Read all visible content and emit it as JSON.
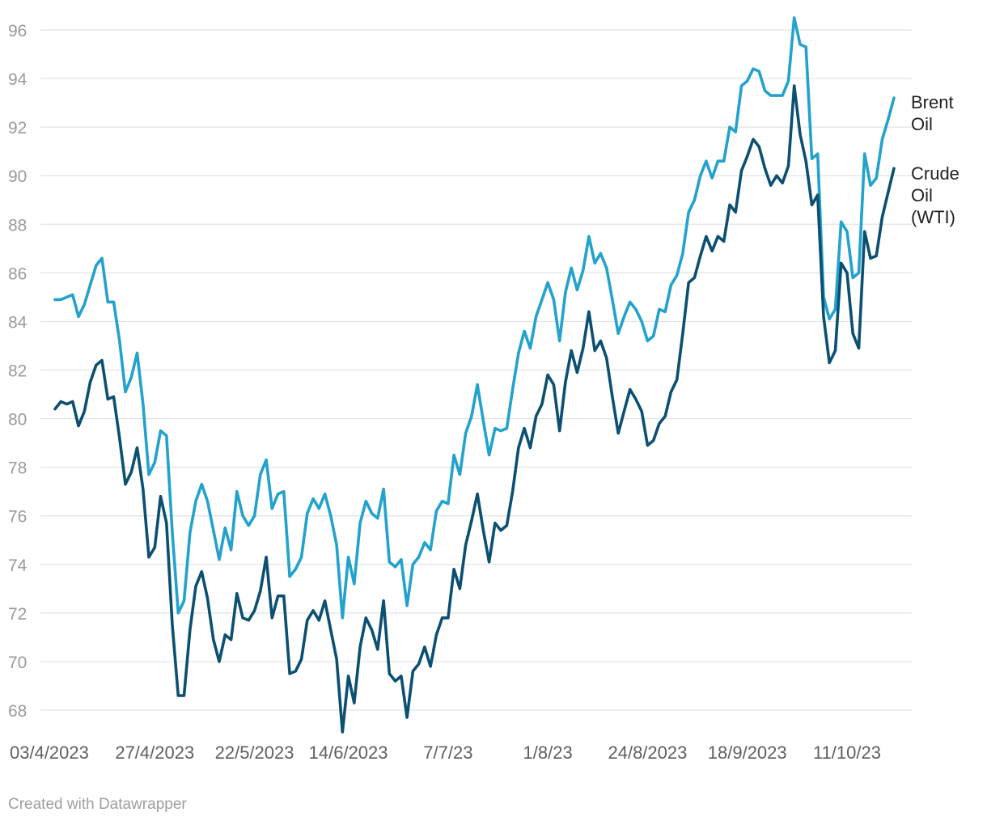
{
  "credit": "Created with Datawrapper",
  "chart_data": {
    "type": "line",
    "title": "",
    "xlabel": "",
    "ylabel": "",
    "ylim": [
      67,
      97
    ],
    "yticks": [
      68,
      70,
      72,
      74,
      76,
      78,
      80,
      82,
      84,
      86,
      88,
      90,
      92,
      94,
      96
    ],
    "x_tick_labels": [
      {
        "label": "03/4/2023",
        "index": 0
      },
      {
        "label": "27/4/2023",
        "index": 17
      },
      {
        "label": "22/5/2023",
        "index": 34
      },
      {
        "label": "14/6/2023",
        "index": 50
      },
      {
        "label": "7/7/23",
        "index": 67
      },
      {
        "label": "1/8/23",
        "index": 84
      },
      {
        "label": "24/8/2023",
        "index": 101
      },
      {
        "label": "18/9/2023",
        "index": 118
      },
      {
        "label": "11/10/23",
        "index": 135
      }
    ],
    "grid": true,
    "legend": "inline-right",
    "series": [
      {
        "name": "Brent Oil",
        "label_lines": [
          "Brent",
          "Oil"
        ],
        "color": "#22a2cc",
        "values": [
          84.9,
          84.9,
          85.0,
          85.1,
          84.2,
          84.7,
          85.5,
          86.3,
          86.6,
          84.8,
          84.8,
          83.2,
          81.1,
          81.7,
          82.7,
          80.6,
          77.7,
          78.2,
          79.5,
          79.3,
          75.3,
          72.0,
          72.5,
          75.3,
          76.6,
          77.3,
          76.6,
          75.4,
          74.2,
          75.5,
          74.6,
          77.0,
          76.0,
          75.6,
          76.0,
          77.7,
          78.3,
          76.3,
          76.9,
          77.0,
          73.5,
          73.8,
          74.3,
          76.1,
          76.7,
          76.3,
          76.9,
          76.0,
          74.8,
          71.8,
          74.3,
          73.2,
          75.7,
          76.6,
          76.1,
          75.9,
          77.1,
          74.1,
          73.9,
          74.2,
          72.3,
          74.0,
          74.3,
          74.9,
          74.6,
          76.2,
          76.6,
          76.5,
          78.5,
          77.7,
          79.4,
          80.1,
          81.4,
          79.9,
          78.5,
          79.6,
          79.5,
          79.6,
          81.2,
          82.7,
          83.6,
          82.9,
          84.2,
          84.9,
          85.6,
          84.9,
          83.2,
          85.2,
          86.2,
          85.3,
          86.1,
          87.5,
          86.4,
          86.8,
          86.2,
          84.9,
          83.5,
          84.2,
          84.8,
          84.5,
          84.0,
          83.2,
          83.4,
          84.5,
          84.4,
          85.5,
          85.9,
          86.8,
          88.5,
          89.0,
          90.0,
          90.6,
          89.9,
          90.6,
          90.6,
          92.0,
          91.8,
          93.7,
          93.9,
          94.4,
          94.3,
          93.5,
          93.3,
          93.3,
          93.3,
          93.9,
          96.5,
          95.4,
          95.3,
          90.7,
          90.9,
          85.0,
          84.1,
          84.5,
          88.1,
          87.7,
          85.8,
          86.0,
          90.9,
          89.6,
          89.9,
          91.5,
          92.3,
          93.2
        ]
      },
      {
        "name": "Crude Oil (WTI)",
        "label_lines": [
          "Crude",
          "Oil",
          "(WTI)"
        ],
        "color": "#0b4f71",
        "values": [
          80.4,
          80.7,
          80.6,
          80.7,
          79.7,
          80.3,
          81.5,
          82.2,
          82.4,
          80.8,
          80.9,
          79.2,
          77.3,
          77.8,
          78.8,
          77.1,
          74.3,
          74.7,
          76.8,
          75.7,
          71.5,
          68.6,
          68.6,
          71.3,
          73.1,
          73.7,
          72.6,
          70.9,
          70.0,
          71.1,
          70.9,
          72.8,
          71.8,
          71.7,
          72.1,
          72.9,
          74.3,
          71.8,
          72.7,
          72.7,
          69.5,
          69.6,
          70.1,
          71.7,
          72.1,
          71.7,
          72.5,
          71.3,
          70.1,
          67.1,
          69.4,
          68.3,
          70.6,
          71.8,
          71.3,
          70.5,
          72.5,
          69.5,
          69.2,
          69.4,
          67.7,
          69.6,
          69.9,
          70.6,
          69.8,
          71.1,
          71.8,
          71.8,
          73.8,
          73.0,
          74.8,
          75.8,
          76.9,
          75.4,
          74.1,
          75.7,
          75.4,
          75.6,
          77.0,
          78.8,
          79.6,
          78.8,
          80.1,
          80.6,
          81.8,
          81.4,
          79.5,
          81.5,
          82.8,
          81.9,
          82.9,
          84.4,
          82.8,
          83.2,
          82.5,
          80.9,
          79.4,
          80.3,
          81.2,
          80.8,
          80.3,
          78.9,
          79.1,
          79.8,
          80.1,
          81.1,
          81.6,
          83.5,
          85.6,
          85.8,
          86.7,
          87.5,
          86.9,
          87.5,
          87.3,
          88.8,
          88.5,
          90.2,
          90.8,
          91.5,
          91.2,
          90.3,
          89.6,
          90.0,
          89.7,
          90.4,
          93.7,
          91.7,
          90.6,
          88.8,
          89.2,
          84.2,
          82.3,
          82.8,
          86.4,
          86.0,
          83.5,
          82.9,
          87.7,
          86.6,
          86.7,
          88.3,
          89.3,
          90.3
        ]
      }
    ]
  }
}
